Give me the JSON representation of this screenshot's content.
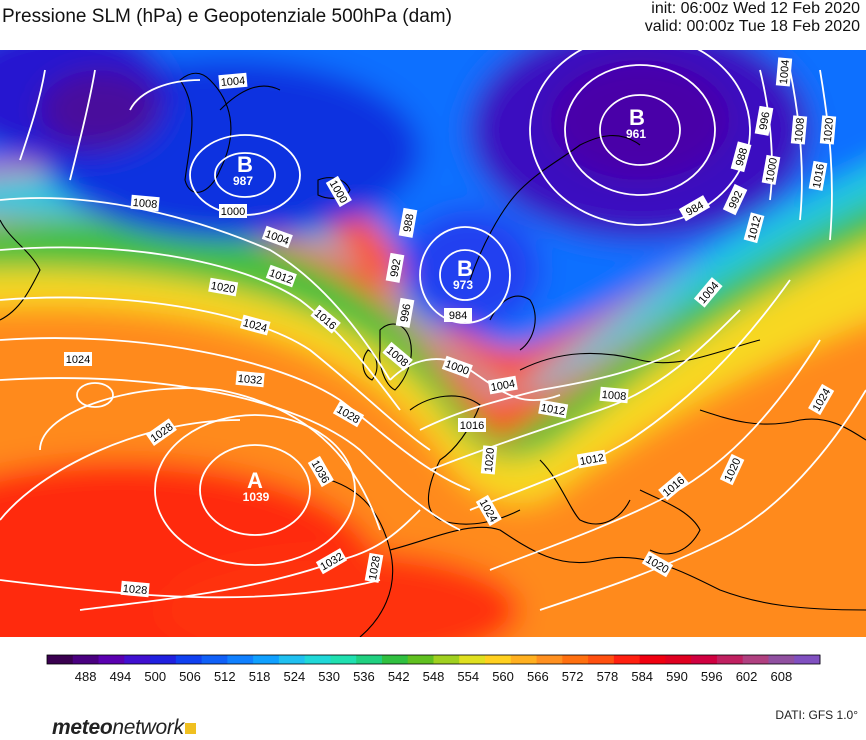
{
  "header": {
    "title": "Pressione SLM (hPa) e Geopotenziale 500hPa (dam)",
    "init": "init: 06:00z Wed 12 Feb 2020",
    "valid": "valid: 00:00z Tue 18 Feb 2020"
  },
  "centers": [
    {
      "letter": "B",
      "value": "987"
    },
    {
      "letter": "B",
      "value": "973"
    },
    {
      "letter": "B",
      "value": "961"
    },
    {
      "letter": "A",
      "value": "1039"
    }
  ],
  "isobar_labels": [
    "1004",
    "1008",
    "1000",
    "1000",
    "1004",
    "1012",
    "1020",
    "1024",
    "1016",
    "1024",
    "1032",
    "1028",
    "1028",
    "1036",
    "1032",
    "1028",
    "1028",
    "988",
    "992",
    "984",
    "996",
    "1008",
    "1000",
    "1004",
    "1016",
    "1020",
    "1012",
    "1008",
    "1012",
    "1016",
    "1024",
    "1020",
    "1024",
    "1020",
    "984",
    "992",
    "988",
    "996",
    "1000",
    "1004",
    "1008",
    "1012",
    "1016",
    "1020",
    "1004"
  ],
  "colorbar": {
    "ticks": [
      "488",
      "494",
      "500",
      "506",
      "512",
      "518",
      "524",
      "530",
      "536",
      "542",
      "548",
      "554",
      "560",
      "566",
      "572",
      "578",
      "584",
      "590",
      "596",
      "602",
      "608"
    ],
    "colors": [
      "#3a0050",
      "#4a0080",
      "#5a00b0",
      "#4010d0",
      "#2020e0",
      "#1040f0",
      "#1060f8",
      "#1080ff",
      "#10a0ff",
      "#20c0f0",
      "#20d8d8",
      "#20e0b0",
      "#20d080",
      "#30c040",
      "#60c020",
      "#a0d020",
      "#e0e020",
      "#ffd020",
      "#ffb020",
      "#ff9020",
      "#ff7010",
      "#ff5010",
      "#ff2010",
      "#f00010",
      "#e00020",
      "#d00040",
      "#c02060",
      "#b04080",
      "#9050a0",
      "#8050c0"
    ]
  },
  "footer": {
    "logo_bold": "meteo",
    "logo_rest": "network",
    "source": "DATI: GFS 1.0°"
  }
}
